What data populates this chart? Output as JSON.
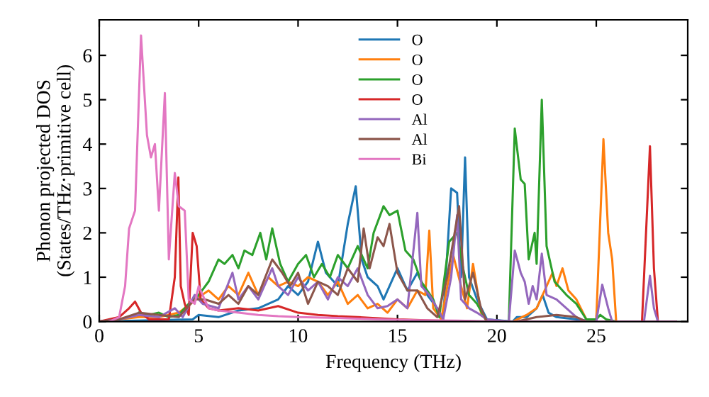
{
  "chart_data": {
    "type": "line",
    "xlabel": "Frequency (THz)",
    "ylabel": "Phonon projected DOS\n(States/THz·primitive cell)",
    "xlim": [
      0,
      29.6
    ],
    "ylim": [
      0,
      6.8
    ],
    "xticks": [
      0,
      5,
      10,
      15,
      20,
      25
    ],
    "yticks": [
      0,
      1,
      2,
      3,
      4,
      5,
      6
    ],
    "grid": false,
    "legend": "top",
    "line_style": "solid",
    "marker": "none",
    "series": [
      {
        "name": "O",
        "color": "#1f77b4",
        "x": [
          0,
          4.7,
          5,
          6,
          7,
          8,
          9,
          9.5,
          10,
          10.5,
          11,
          11.4,
          12,
          12.5,
          12.9,
          13.2,
          13.5,
          14,
          14.3,
          15,
          15.5,
          16,
          16.5,
          17,
          17.3,
          17.7,
          18,
          18.2,
          18.4,
          18.6,
          19,
          19.5,
          20.8,
          21,
          21.5,
          22,
          22.3,
          22.6,
          23,
          24,
          25,
          29
        ],
        "values": [
          0,
          0.05,
          0.15,
          0.1,
          0.25,
          0.3,
          0.5,
          0.8,
          0.6,
          0.9,
          1.8,
          1.1,
          0.8,
          2.2,
          3.05,
          1.4,
          1.0,
          0.8,
          0.5,
          1.2,
          0.7,
          1.1,
          0.6,
          0.3,
          0.05,
          3.0,
          2.9,
          1.0,
          3.7,
          1.0,
          0.5,
          0.05,
          0,
          0.1,
          0.1,
          0.3,
          0.6,
          0.2,
          0.1,
          0.05,
          0,
          0
        ]
      },
      {
        "name": "O",
        "color": "#ff7f0e",
        "x": [
          0,
          1,
          2,
          3,
          4,
          4.6,
          5,
          5.5,
          6,
          6.5,
          7,
          7.5,
          8,
          8.5,
          9,
          9.5,
          10,
          10.5,
          11,
          11.5,
          12,
          12.5,
          13,
          13.5,
          14,
          14.5,
          15,
          15.5,
          16,
          16.4,
          16.6,
          16.8,
          17.2,
          17.8,
          18.2,
          18.5,
          18.8,
          19.2,
          19.5,
          20.8,
          21.5,
          22,
          22.5,
          22.8,
          23,
          23.3,
          23.6,
          24,
          24.5,
          25,
          25.36,
          25.6,
          25.8,
          26,
          29
        ],
        "values": [
          0,
          0.05,
          0.1,
          0.1,
          0.2,
          0.4,
          0.55,
          0.7,
          0.5,
          0.8,
          0.6,
          1.1,
          0.6,
          1.0,
          0.8,
          0.9,
          0.8,
          1.0,
          0.9,
          0.6,
          0.9,
          0.4,
          0.6,
          0.3,
          0.4,
          0.2,
          0.5,
          0.3,
          0.7,
          0.6,
          2.05,
          0.3,
          0.05,
          1.5,
          0.8,
          0.3,
          1.3,
          0.2,
          0,
          0,
          0.15,
          0.3,
          0.8,
          1.1,
          0.8,
          1.2,
          0.7,
          0.5,
          0.05,
          0.05,
          4.11,
          2.0,
          1.4,
          0,
          0
        ]
      },
      {
        "name": "O",
        "color": "#2ca02c",
        "x": [
          2,
          2.5,
          3,
          3.5,
          4,
          4.5,
          5,
          5.5,
          6,
          6.3,
          6.7,
          7,
          7.3,
          7.7,
          8.1,
          8.4,
          8.7,
          9.1,
          9.5,
          10,
          10.4,
          10.8,
          11.2,
          11.6,
          12,
          12.5,
          13,
          13.5,
          13.8,
          14.3,
          14.6,
          15,
          15.4,
          15.8,
          16.2,
          16.8,
          17.1,
          17.6,
          18,
          18.3,
          18.6,
          19,
          19.5,
          20.6,
          20.9,
          21.2,
          21.4,
          21.6,
          21.9,
          22.0,
          22.26,
          22.5,
          22.9,
          23.5,
          24,
          24.5,
          25,
          25.2,
          25.5,
          26,
          29
        ],
        "values": [
          0.2,
          0.15,
          0.2,
          0.1,
          0.15,
          0.4,
          0.6,
          0.9,
          1.4,
          1.3,
          1.5,
          1.2,
          1.6,
          1.5,
          2.0,
          1.4,
          2.1,
          1.3,
          0.9,
          1.3,
          1.5,
          1.0,
          1.3,
          1.0,
          1.5,
          1.2,
          1.7,
          1.2,
          2.0,
          2.6,
          2.4,
          2.5,
          1.6,
          1.4,
          0.9,
          0.5,
          0.1,
          1.8,
          2.0,
          1.2,
          0.6,
          0.4,
          0,
          0,
          4.35,
          3.2,
          3.1,
          1.4,
          2.0,
          1.3,
          5.0,
          1.7,
          0.9,
          0.6,
          0.4,
          0.05,
          0.05,
          0.15,
          0.05,
          0,
          0
        ]
      },
      {
        "name": "O",
        "color": "#d62728",
        "x": [
          0,
          1,
          1.5,
          1.8,
          2.1,
          2.5,
          3.5,
          3.8,
          3.98,
          4.1,
          4.3,
          4.5,
          4.7,
          4.9,
          5.1,
          5.5,
          6,
          7,
          8,
          9,
          10,
          11,
          12,
          13,
          15,
          17,
          19,
          27.3,
          27.7,
          27.9,
          28.1,
          29
        ],
        "values": [
          0,
          0.1,
          0.3,
          0.45,
          0.2,
          0.05,
          0.05,
          1.0,
          3.25,
          0.8,
          0.4,
          0.15,
          2.0,
          1.7,
          0.5,
          0.3,
          0.25,
          0.3,
          0.25,
          0.35,
          0.2,
          0.15,
          0.12,
          0.1,
          0.05,
          0.02,
          0,
          0,
          3.95,
          1.2,
          0,
          0
        ]
      },
      {
        "name": "Al",
        "color": "#9467bd",
        "x": [
          0,
          1,
          2,
          3,
          3.8,
          4.2,
          4.8,
          5.2,
          6,
          6.7,
          7,
          7.5,
          8,
          8.7,
          9,
          9.5,
          10,
          10.5,
          11,
          11.5,
          12,
          12.5,
          13,
          13.5,
          14,
          14.5,
          15,
          15.5,
          16.0,
          16.2,
          16.6,
          17,
          17.3,
          17.7,
          18,
          18.2,
          18.6,
          19,
          19.5,
          20.6,
          20.9,
          21.2,
          21.4,
          21.6,
          21.8,
          22,
          22.26,
          22.5,
          23,
          23.5,
          24,
          24.5,
          25,
          25.3,
          25.6,
          25.8,
          27.4,
          27.7,
          27.9,
          28.1,
          29
        ],
        "values": [
          0,
          0.05,
          0.15,
          0.1,
          0.3,
          0.1,
          0.6,
          0.4,
          0.3,
          1.1,
          0.5,
          0.8,
          0.5,
          1.2,
          0.8,
          0.6,
          1.0,
          0.7,
          0.9,
          0.5,
          1.0,
          0.8,
          1.2,
          0.6,
          0.3,
          0.35,
          0.5,
          0.3,
          2.45,
          0.8,
          0.6,
          0.3,
          0.05,
          1.0,
          2.4,
          0.5,
          0.3,
          0.2,
          0.05,
          0,
          1.6,
          1.1,
          0.9,
          0.4,
          0.8,
          0.5,
          1.53,
          0.6,
          0.5,
          0.3,
          0.1,
          0,
          0,
          0.83,
          0.3,
          0,
          0,
          1.03,
          0.3,
          0,
          0
        ]
      },
      {
        "name": "Al",
        "color": "#8c564b",
        "x": [
          0,
          1,
          2,
          3,
          4,
          4.8,
          5.3,
          6,
          6.5,
          7,
          7.5,
          8,
          8.7,
          9.2,
          9.6,
          10,
          10.5,
          11,
          11.5,
          12,
          12.5,
          13,
          13.3,
          13.6,
          14,
          14.3,
          14.6,
          15,
          15.5,
          16,
          16.5,
          17,
          17.5,
          18.1,
          18.4,
          18.8,
          19.2,
          19.5,
          21,
          22,
          23,
          24,
          24.5,
          29
        ],
        "values": [
          0,
          0.05,
          0.2,
          0.15,
          0.1,
          0.5,
          0.5,
          0.4,
          0.6,
          0.4,
          0.8,
          0.6,
          1.4,
          1.1,
          0.8,
          1.1,
          0.4,
          0.9,
          0.8,
          0.6,
          1.2,
          0.9,
          2.1,
          1.2,
          1.9,
          1.7,
          2.2,
          1.1,
          0.7,
          0.7,
          0.3,
          0.1,
          1.0,
          2.6,
          0.5,
          1.1,
          0.3,
          0,
          0,
          0.1,
          0.15,
          0.1,
          0,
          0
        ]
      },
      {
        "name": "Bi",
        "color": "#e377c2",
        "x": [
          0.5,
          1,
          1.3,
          1.5,
          1.8,
          2.1,
          2.4,
          2.6,
          2.8,
          3.0,
          3.3,
          3.5,
          3.8,
          4.0,
          4.3,
          4.5,
          4.8,
          5.0,
          5.5,
          6,
          7,
          8,
          9,
          10,
          12,
          14,
          16,
          18,
          20,
          29
        ],
        "values": [
          0,
          0.1,
          0.8,
          2.1,
          2.5,
          6.45,
          4.2,
          3.7,
          4.0,
          2.5,
          5.15,
          1.4,
          3.35,
          2.6,
          2.5,
          0.5,
          0.4,
          0.8,
          0.3,
          0.25,
          0.2,
          0.15,
          0.12,
          0.1,
          0.08,
          0.05,
          0.03,
          0.02,
          0,
          0
        ]
      }
    ]
  }
}
